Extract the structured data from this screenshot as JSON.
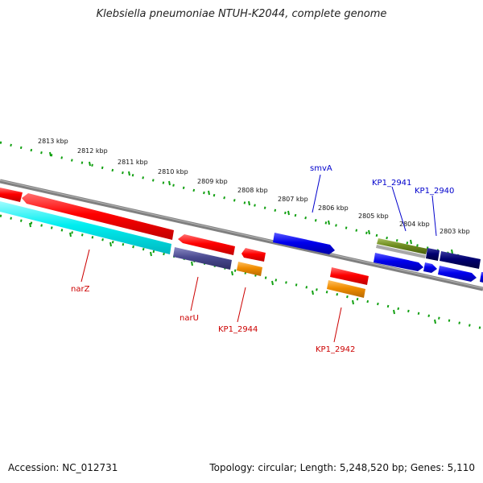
{
  "title": "Klebsiella pneumoniae NTUH-K2044, complete genome",
  "accession": "Accession: NC_012731",
  "topology": "Topology: circular; Length: 5,248,520 bp; Genes: 5,110",
  "colors": {
    "backbone": "#808080",
    "tick": "#11a011",
    "red": "#ff0000",
    "cyan": "#00f0f0",
    "slate": "#4a4a90",
    "orange": "#f08c00",
    "blue": "#0000ee",
    "navy": "#000070",
    "olive": "#6e8c1e",
    "labelRed": "#cc0000",
    "labelBlue": "#0000cc"
  },
  "kbp_labels": [
    "2813 kbp",
    "2812 kbp",
    "2811 kbp",
    "2810 kbp",
    "2809 kbp",
    "2808 kbp",
    "2807 kbp",
    "2806 kbp",
    "2805 kbp",
    "2804 kbp",
    "2803 kbp"
  ],
  "genes": {
    "narZ": "narZ",
    "narU": "narU",
    "kp1_2944": "KP1_2944",
    "kp1_2942": "KP1_2942",
    "smvA": "smvA",
    "kp1_2941": "KP1_2941",
    "kp1_2940": "KP1_2940"
  }
}
